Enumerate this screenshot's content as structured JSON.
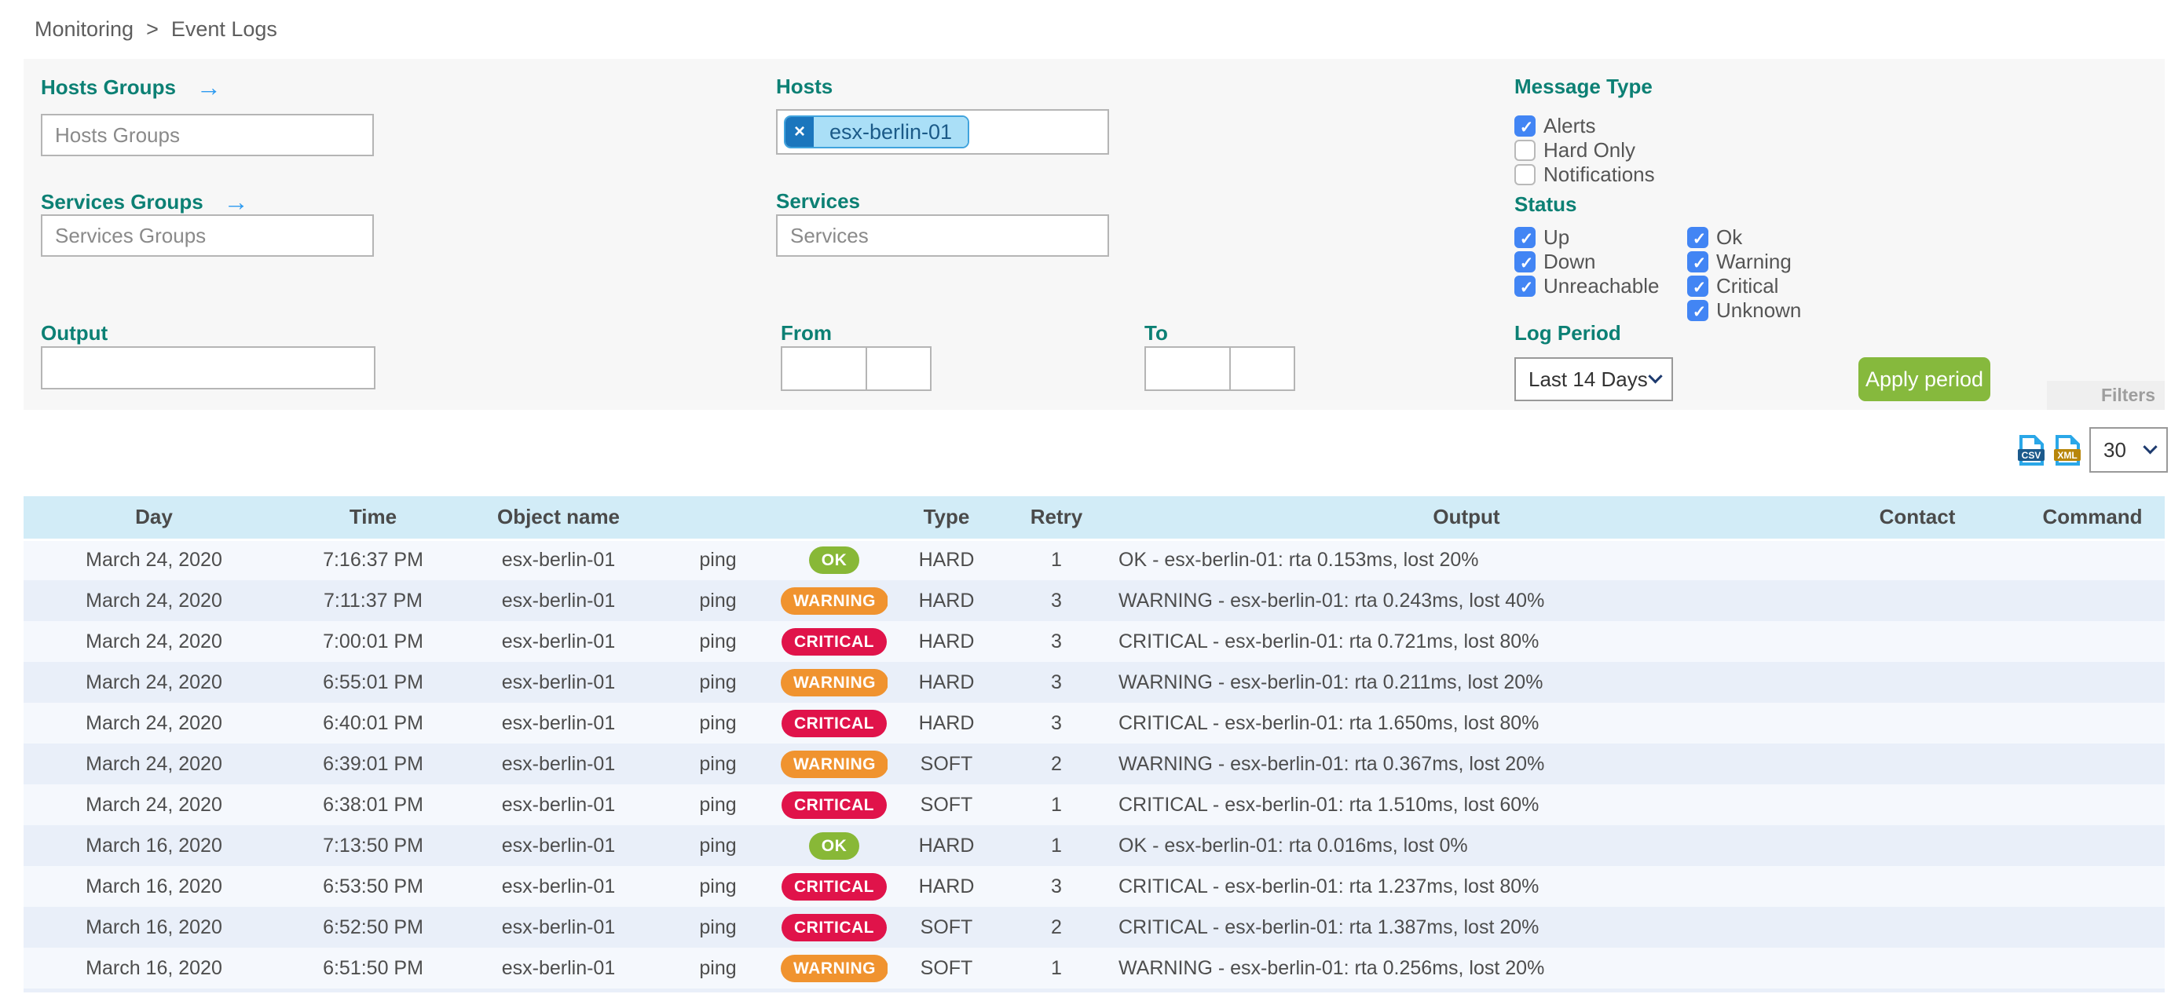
{
  "breadcrumb": {
    "items": [
      "Monitoring",
      "Event Logs"
    ],
    "separator": ">"
  },
  "icons": {
    "arrow_right": "→",
    "chip_remove": "×",
    "csv_label": "CSV",
    "xml_label": "XML"
  },
  "filters": {
    "hosts_groups": {
      "label": "Hosts Groups",
      "placeholder": "Hosts Groups"
    },
    "services_groups": {
      "label": "Services Groups",
      "placeholder": "Services Groups"
    },
    "hosts": {
      "label": "Hosts",
      "chips": [
        {
          "text": "esx-berlin-01"
        }
      ]
    },
    "services": {
      "label": "Services",
      "placeholder": "Services"
    },
    "output": {
      "label": "Output",
      "value": ""
    },
    "from": {
      "label": "From",
      "date_value": "",
      "time_value": ""
    },
    "to": {
      "label": "To",
      "date_value": "",
      "time_value": ""
    },
    "message_type": {
      "label": "Message Type",
      "options": [
        {
          "label": "Alerts",
          "checked": true
        },
        {
          "label": "Hard Only",
          "checked": false
        },
        {
          "label": "Notifications",
          "checked": false
        }
      ]
    },
    "status": {
      "label": "Status",
      "col1": [
        {
          "label": "Up",
          "checked": true
        },
        {
          "label": "Down",
          "checked": true
        },
        {
          "label": "Unreachable",
          "checked": true
        }
      ],
      "col2": [
        {
          "label": "Ok",
          "checked": true
        },
        {
          "label": "Warning",
          "checked": true
        },
        {
          "label": "Critical",
          "checked": true
        },
        {
          "label": "Unknown",
          "checked": true
        }
      ]
    },
    "log_period": {
      "label": "Log Period",
      "selected": "Last 14 Days"
    },
    "apply_button": "Apply period",
    "filters_tab": "Filters"
  },
  "toolbar": {
    "page_size": "30"
  },
  "colors": {
    "label_teal": "#0c8074",
    "checkbox_blue": "#4285f4",
    "apply_green": "#86b93d",
    "header_blue": "#d2ecf7",
    "status_badges": {
      "ok": "#88b837",
      "warning": "#f0932f",
      "critical": "#e0134a"
    }
  },
  "table": {
    "headers": [
      "Day",
      "Time",
      "Object name",
      "",
      "",
      "Type",
      "Retry",
      "Output",
      "Contact",
      "Command"
    ],
    "rows": [
      {
        "day": "March 24, 2020",
        "time": "7:16:37 PM",
        "object_name": "esx-berlin-01",
        "service": "ping",
        "status": "OK",
        "type": "HARD",
        "retry": "1",
        "output": "OK - esx-berlin-01: rta 0.153ms, lost 20%",
        "contact": "",
        "command": ""
      },
      {
        "day": "March 24, 2020",
        "time": "7:11:37 PM",
        "object_name": "esx-berlin-01",
        "service": "ping",
        "status": "WARNING",
        "type": "HARD",
        "retry": "3",
        "output": "WARNING - esx-berlin-01: rta 0.243ms, lost 40%",
        "contact": "",
        "command": ""
      },
      {
        "day": "March 24, 2020",
        "time": "7:00:01 PM",
        "object_name": "esx-berlin-01",
        "service": "ping",
        "status": "CRITICAL",
        "type": "HARD",
        "retry": "3",
        "output": "CRITICAL - esx-berlin-01: rta 0.721ms, lost 80%",
        "contact": "",
        "command": ""
      },
      {
        "day": "March 24, 2020",
        "time": "6:55:01 PM",
        "object_name": "esx-berlin-01",
        "service": "ping",
        "status": "WARNING",
        "type": "HARD",
        "retry": "3",
        "output": "WARNING - esx-berlin-01: rta 0.211ms, lost 20%",
        "contact": "",
        "command": ""
      },
      {
        "day": "March 24, 2020",
        "time": "6:40:01 PM",
        "object_name": "esx-berlin-01",
        "service": "ping",
        "status": "CRITICAL",
        "type": "HARD",
        "retry": "3",
        "output": "CRITICAL - esx-berlin-01: rta 1.650ms, lost 80%",
        "contact": "",
        "command": ""
      },
      {
        "day": "March 24, 2020",
        "time": "6:39:01 PM",
        "object_name": "esx-berlin-01",
        "service": "ping",
        "status": "WARNING",
        "type": "SOFT",
        "retry": "2",
        "output": "WARNING - esx-berlin-01: rta 0.367ms, lost 20%",
        "contact": "",
        "command": ""
      },
      {
        "day": "March 24, 2020",
        "time": "6:38:01 PM",
        "object_name": "esx-berlin-01",
        "service": "ping",
        "status": "CRITICAL",
        "type": "SOFT",
        "retry": "1",
        "output": "CRITICAL - esx-berlin-01: rta 1.510ms, lost 60%",
        "contact": "",
        "command": ""
      },
      {
        "day": "March 16, 2020",
        "time": "7:13:50 PM",
        "object_name": "esx-berlin-01",
        "service": "ping",
        "status": "OK",
        "type": "HARD",
        "retry": "1",
        "output": "OK - esx-berlin-01: rta 0.016ms, lost 0%",
        "contact": "",
        "command": ""
      },
      {
        "day": "March 16, 2020",
        "time": "6:53:50 PM",
        "object_name": "esx-berlin-01",
        "service": "ping",
        "status": "CRITICAL",
        "type": "HARD",
        "retry": "3",
        "output": "CRITICAL - esx-berlin-01: rta 1.237ms, lost 80%",
        "contact": "",
        "command": ""
      },
      {
        "day": "March 16, 2020",
        "time": "6:52:50 PM",
        "object_name": "esx-berlin-01",
        "service": "ping",
        "status": "CRITICAL",
        "type": "SOFT",
        "retry": "2",
        "output": "CRITICAL - esx-berlin-01: rta 1.387ms, lost 20%",
        "contact": "",
        "command": ""
      },
      {
        "day": "March 16, 2020",
        "time": "6:51:50 PM",
        "object_name": "esx-berlin-01",
        "service": "ping",
        "status": "WARNING",
        "type": "SOFT",
        "retry": "1",
        "output": "WARNING - esx-berlin-01: rta 0.256ms, lost 20%",
        "contact": "",
        "command": ""
      }
    ]
  }
}
